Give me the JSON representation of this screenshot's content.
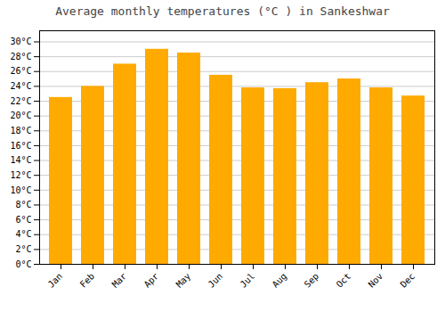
{
  "chart_data": {
    "type": "bar",
    "title": "Average monthly temperatures (°C ) in Sankeshwar",
    "categories": [
      "Jan",
      "Feb",
      "Mar",
      "Apr",
      "May",
      "Jun",
      "Jul",
      "Aug",
      "Sep",
      "Oct",
      "Nov",
      "Dec"
    ],
    "values": [
      22.5,
      24.0,
      27.0,
      29.0,
      28.5,
      25.5,
      23.8,
      23.7,
      24.5,
      25.0,
      23.8,
      22.7
    ],
    "color": "#FFAA00",
    "ylim": [
      0,
      31.5
    ],
    "yticks": [
      {
        "value": 0,
        "label": "0°C"
      },
      {
        "value": 2,
        "label": "2°C"
      },
      {
        "value": 4,
        "label": "4°C"
      },
      {
        "value": 6,
        "label": "6°C"
      },
      {
        "value": 8,
        "label": "8°C"
      },
      {
        "value": 10,
        "label": "10°C"
      },
      {
        "value": 12,
        "label": "12°C"
      },
      {
        "value": 14,
        "label": "14°C"
      },
      {
        "value": 16,
        "label": "16°C"
      },
      {
        "value": 18,
        "label": "18°C"
      },
      {
        "value": 20,
        "label": "20°C"
      },
      {
        "value": 22,
        "label": "22°C"
      },
      {
        "value": 24,
        "label": "24°C"
      },
      {
        "value": 26,
        "label": "26°C"
      },
      {
        "value": 28,
        "label": "28°C"
      },
      {
        "value": 30,
        "label": "30°C"
      }
    ],
    "grid": true
  }
}
